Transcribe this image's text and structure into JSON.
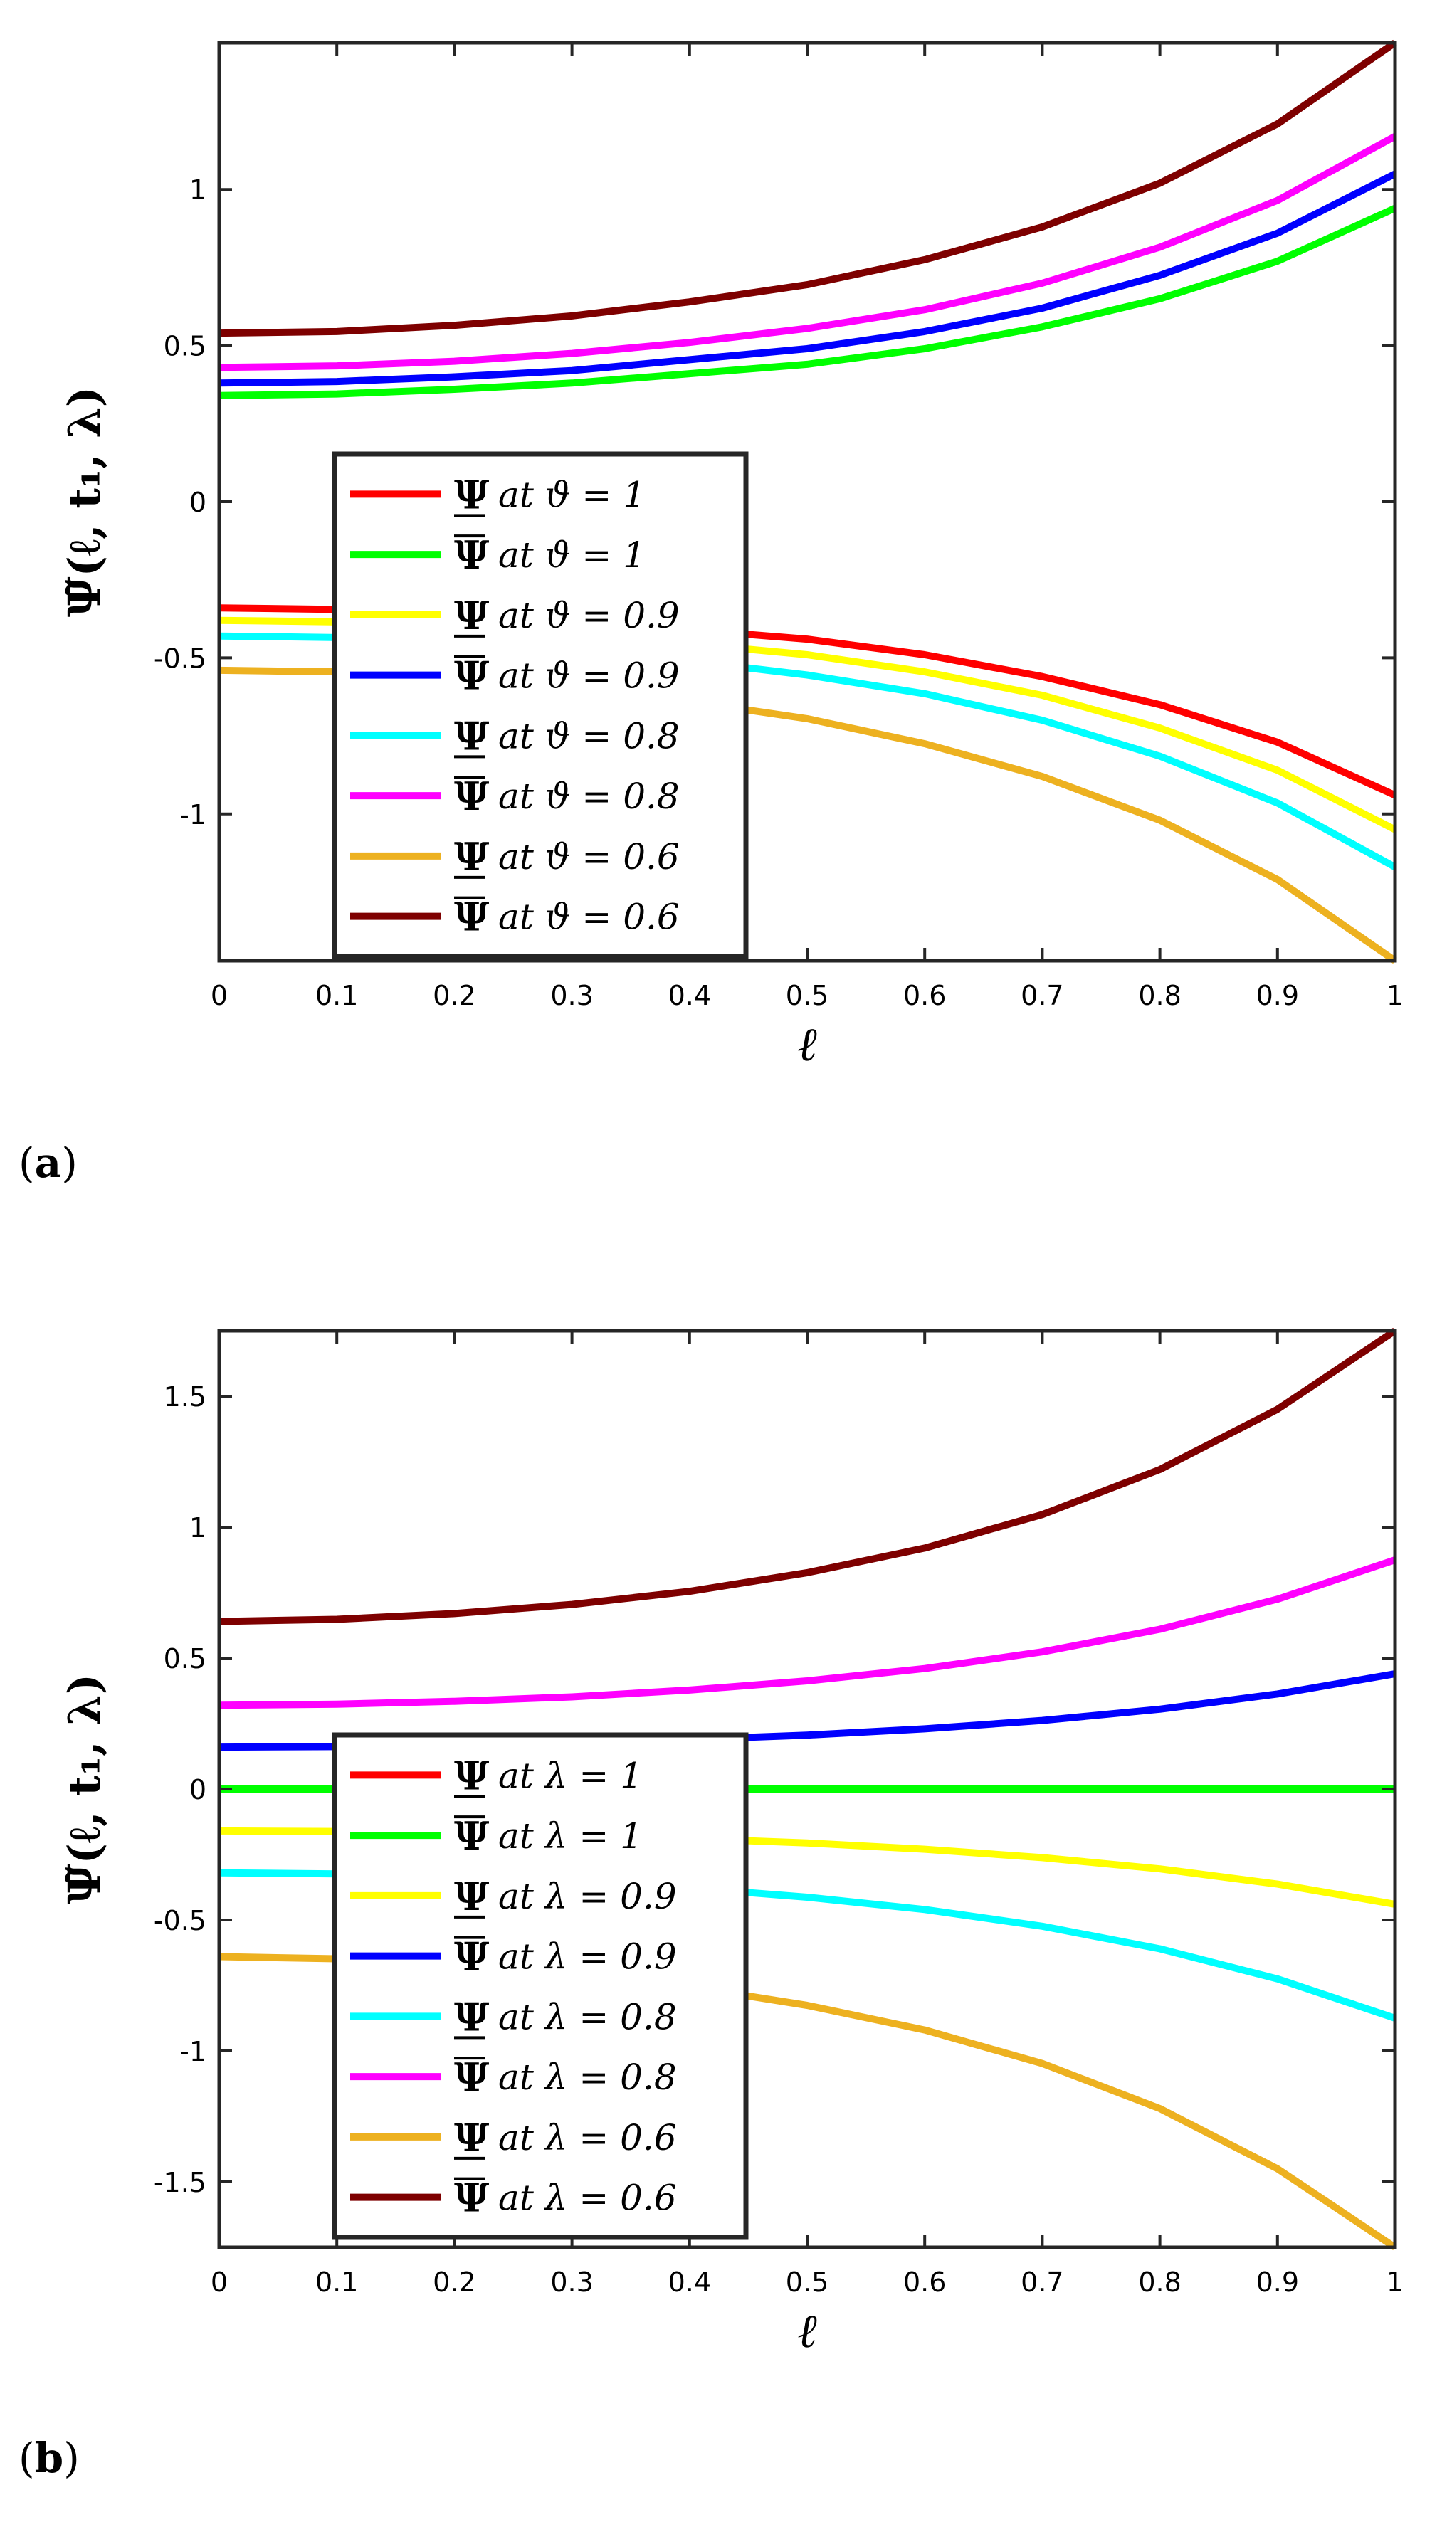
{
  "figure": {
    "panels": [
      {
        "label_open": "(",
        "label_letter": "a",
        "label_close": ")"
      },
      {
        "label_open": "(",
        "label_letter": "b",
        "label_close": ")"
      }
    ]
  },
  "chart_data": [
    {
      "type": "line",
      "panel": "a",
      "xlabel": "ℓ",
      "ylabel": "Ψ̃(ℓ, t₁, λ)",
      "xlim": [
        0,
        1
      ],
      "ylim": [
        -1.47,
        1.47
      ],
      "xticks": [
        0,
        0.1,
        0.2,
        0.3,
        0.4,
        0.5,
        0.6,
        0.7,
        0.8,
        0.9,
        1
      ],
      "xtick_labels": [
        "0",
        "0.1",
        "0.2",
        "0.3",
        "0.4",
        "0.5",
        "0.6",
        "0.7",
        "0.8",
        "0.9",
        "1"
      ],
      "yticks": [
        -1,
        -0.5,
        0,
        0.5,
        1
      ],
      "ytick_labels": [
        "-1",
        "-0.5",
        "0",
        "0.5",
        "1"
      ],
      "legend_location": "center-left",
      "x": [
        0,
        0.1,
        0.2,
        0.3,
        0.4,
        0.5,
        0.6,
        0.7,
        0.8,
        0.9,
        1
      ],
      "series": [
        {
          "symbol": "Ψ",
          "bar": "under",
          "text": "at ϑ = 1",
          "color": "#ff0000",
          "values": [
            -0.34,
            -0.345,
            -0.36,
            -0.38,
            -0.41,
            -0.44,
            -0.49,
            -0.56,
            -0.65,
            -0.77,
            -0.94
          ]
        },
        {
          "symbol": "Ψ",
          "bar": "over",
          "text": "at ϑ = 1",
          "color": "#00ff00",
          "values": [
            0.34,
            0.345,
            0.36,
            0.38,
            0.41,
            0.44,
            0.49,
            0.56,
            0.65,
            0.77,
            0.94
          ]
        },
        {
          "symbol": "Ψ",
          "bar": "under",
          "text": "at ϑ = 0.9",
          "color": "#ffff00",
          "values": [
            -0.38,
            -0.385,
            -0.4,
            -0.42,
            -0.455,
            -0.49,
            -0.545,
            -0.62,
            -0.725,
            -0.86,
            -1.05
          ]
        },
        {
          "symbol": "Ψ",
          "bar": "over",
          "text": "at ϑ = 0.9",
          "color": "#0000ff",
          "values": [
            0.38,
            0.385,
            0.4,
            0.42,
            0.455,
            0.49,
            0.545,
            0.62,
            0.725,
            0.86,
            1.05
          ]
        },
        {
          "symbol": "Ψ",
          "bar": "under",
          "text": "at ϑ = 0.8",
          "color": "#00ffff",
          "values": [
            -0.43,
            -0.435,
            -0.45,
            -0.475,
            -0.51,
            -0.555,
            -0.615,
            -0.7,
            -0.815,
            -0.965,
            -1.17
          ]
        },
        {
          "symbol": "Ψ",
          "bar": "over",
          "text": "at ϑ = 0.8",
          "color": "#ff00ff",
          "values": [
            0.43,
            0.435,
            0.45,
            0.475,
            0.51,
            0.555,
            0.615,
            0.7,
            0.815,
            0.965,
            1.17
          ]
        },
        {
          "symbol": "Ψ",
          "bar": "under",
          "text": "at ϑ = 0.6",
          "color": "#edb120",
          "values": [
            -0.54,
            -0.545,
            -0.565,
            -0.595,
            -0.64,
            -0.695,
            -0.775,
            -0.88,
            -1.02,
            -1.21,
            -1.47
          ]
        },
        {
          "symbol": "Ψ",
          "bar": "over",
          "text": "at ϑ = 0.6",
          "color": "#7e0000",
          "values": [
            0.54,
            0.545,
            0.565,
            0.595,
            0.64,
            0.695,
            0.775,
            0.88,
            1.02,
            1.21,
            1.47
          ]
        }
      ]
    },
    {
      "type": "line",
      "panel": "b",
      "xlabel": "ℓ",
      "ylabel": "Ψ̃(ℓ, t₁, λ)",
      "xlim": [
        0,
        1
      ],
      "ylim": [
        -1.75,
        1.75
      ],
      "xticks": [
        0,
        0.1,
        0.2,
        0.3,
        0.4,
        0.5,
        0.6,
        0.7,
        0.8,
        0.9,
        1
      ],
      "xtick_labels": [
        "0",
        "0.1",
        "0.2",
        "0.3",
        "0.4",
        "0.5",
        "0.6",
        "0.7",
        "0.8",
        "0.9",
        "1"
      ],
      "yticks": [
        -1.5,
        -1,
        -0.5,
        0,
        0.5,
        1,
        1.5
      ],
      "ytick_labels": [
        "-1.5",
        "-1",
        "-0.5",
        "0",
        "0.5",
        "1",
        "1.5"
      ],
      "legend_location": "lower-left",
      "x": [
        0,
        0.1,
        0.2,
        0.3,
        0.4,
        0.5,
        0.6,
        0.7,
        0.8,
        0.9,
        1
      ],
      "series": [
        {
          "symbol": "Ψ",
          "bar": "under",
          "text": "at λ = 1",
          "color": "#ff0000",
          "values": [
            0,
            0,
            0,
            0,
            0,
            0,
            0,
            0,
            0,
            0,
            0
          ]
        },
        {
          "symbol": "Ψ",
          "bar": "over",
          "text": "at λ = 1",
          "color": "#00ff00",
          "values": [
            0,
            0,
            0,
            0,
            0,
            0,
            0,
            0,
            0,
            0,
            0
          ]
        },
        {
          "symbol": "Ψ",
          "bar": "under",
          "text": "at λ = 0.9",
          "color": "#ffff00",
          "values": [
            -0.16,
            -0.162,
            -0.168,
            -0.176,
            -0.189,
            -0.206,
            -0.23,
            -0.262,
            -0.305,
            -0.363,
            -0.44
          ]
        },
        {
          "symbol": "Ψ",
          "bar": "over",
          "text": "at λ = 0.9",
          "color": "#0000ff",
          "values": [
            0.16,
            0.162,
            0.168,
            0.176,
            0.189,
            0.206,
            0.23,
            0.262,
            0.305,
            0.363,
            0.44
          ]
        },
        {
          "symbol": "Ψ",
          "bar": "under",
          "text": "at λ = 0.8",
          "color": "#00ffff",
          "values": [
            -0.32,
            -0.324,
            -0.335,
            -0.352,
            -0.378,
            -0.413,
            -0.46,
            -0.524,
            -0.61,
            -0.725,
            -0.875
          ]
        },
        {
          "symbol": "Ψ",
          "bar": "over",
          "text": "at λ = 0.8",
          "color": "#ff00ff",
          "values": [
            0.32,
            0.324,
            0.335,
            0.352,
            0.378,
            0.413,
            0.46,
            0.524,
            0.61,
            0.725,
            0.875
          ]
        },
        {
          "symbol": "Ψ",
          "bar": "under",
          "text": "at λ = 0.6",
          "color": "#edb120",
          "values": [
            -0.64,
            -0.648,
            -0.67,
            -0.705,
            -0.755,
            -0.826,
            -0.92,
            -1.048,
            -1.22,
            -1.45,
            -1.75
          ]
        },
        {
          "symbol": "Ψ",
          "bar": "over",
          "text": "at λ = 0.6",
          "color": "#7e0000",
          "values": [
            0.64,
            0.648,
            0.67,
            0.705,
            0.755,
            0.826,
            0.92,
            1.048,
            1.22,
            1.45,
            1.75
          ]
        }
      ]
    }
  ]
}
